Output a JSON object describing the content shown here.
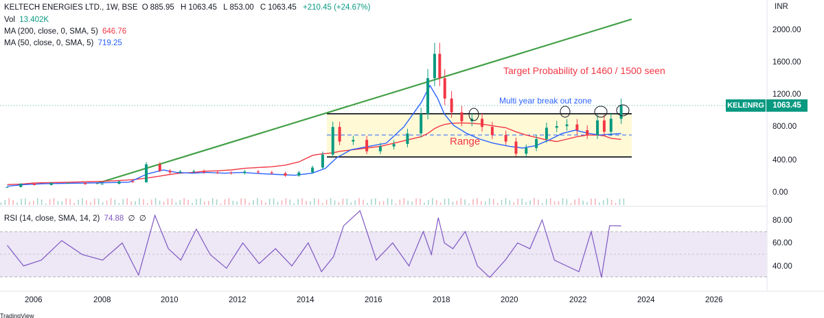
{
  "header": {
    "symbol_line": "KELTECH ENERGIES LTD., 1W, BSE",
    "open_label": "O",
    "open": "885.95",
    "high_label": "H",
    "high": "1063.45",
    "low_label": "L",
    "low": "853.00",
    "close_label": "C",
    "close": "1063.45",
    "change": "+210.45 (+24.67%)"
  },
  "indicators": {
    "vol_label": "Vol",
    "vol_value": "13.402K",
    "ma200_label": "MA (200, close, 0, SMA, 5)",
    "ma200_value": "646.76",
    "ma50_label": "MA (50, close, 0, SMA, 5)",
    "ma50_value": "719.25",
    "rsi_label": "RSI (14, close, SMA, 14, 2)",
    "rsi_value": "74.88",
    "rsi_extra1": "∅",
    "rsi_extra2": "∅"
  },
  "price_axis": {
    "currency": "INR",
    "labels": [
      "2000.00",
      "1600.00",
      "1200.00",
      "800.00",
      "400.00",
      "0.00"
    ]
  },
  "rsi_axis": {
    "labels": [
      "80.00",
      "60.00",
      "40.00"
    ]
  },
  "time_axis": {
    "labels": [
      "2006",
      "2008",
      "2010",
      "2012",
      "2014",
      "2016",
      "2018",
      "2020",
      "2022",
      "2024",
      "2026"
    ]
  },
  "last_price": {
    "symbol": "KELENRG",
    "value": "1063.45"
  },
  "annotations": {
    "target": "Target Probability of 1460 / 1500 seen",
    "breakout": "Multi year break out zone",
    "range": "Range"
  },
  "colors": {
    "up": "#089981",
    "down": "#f23645",
    "trendline": "#43a047",
    "ma200": "#f23645",
    "ma50": "#2962ff",
    "rsi": "#7e57c2",
    "range_fill": "#fff9d6",
    "rsi_band": "#ede7f6"
  },
  "footer": {
    "text": "TradingView"
  },
  "chart_data": {
    "type": "candlestick",
    "timeframe": "1W",
    "x": [
      "2005.2",
      "2005.6",
      "2006.0",
      "2006.5",
      "2007.0",
      "2007.5",
      "2008.0",
      "2008.5",
      "2008.9",
      "2009.3",
      "2009.7",
      "2010.0",
      "2010.3",
      "2010.7",
      "2011.0",
      "2011.4",
      "2011.8",
      "2012.2",
      "2012.6",
      "2013.0",
      "2013.4",
      "2013.8",
      "2014.2",
      "2014.5",
      "2014.8",
      "2015.0",
      "2015.4",
      "2015.8",
      "2016.2",
      "2016.6",
      "2017.0",
      "2017.4",
      "2017.6",
      "2017.8",
      "2017.95",
      "2018.1",
      "2018.3",
      "2018.6",
      "2018.9",
      "2019.2",
      "2019.5",
      "2019.9",
      "2020.2",
      "2020.5",
      "2020.8",
      "2021.1",
      "2021.4",
      "2021.7",
      "2022.0",
      "2022.3",
      "2022.6",
      "2022.8",
      "2023.0",
      "2023.3"
    ],
    "close": [
      60,
      100,
      85,
      110,
      110,
      95,
      100,
      130,
      120,
      340,
      260,
      240,
      250,
      255,
      240,
      235,
      230,
      250,
      240,
      230,
      200,
      240,
      300,
      460,
      800,
      620,
      640,
      500,
      560,
      590,
      720,
      960,
      1400,
      1700,
      1400,
      1150,
      980,
      870,
      900,
      800,
      700,
      620,
      470,
      540,
      650,
      790,
      810,
      830,
      760,
      700,
      880,
      740,
      900,
      1063.45
    ],
    "ylim": [
      0,
      2200
    ],
    "ma200": [
      90,
      95,
      110,
      115,
      118,
      125,
      130,
      140,
      150,
      170,
      195,
      215,
      230,
      240,
      255,
      260,
      270,
      290,
      300,
      310,
      330,
      370,
      450,
      470,
      480,
      500,
      520,
      540,
      560,
      600,
      640,
      680,
      720,
      780,
      810,
      830,
      845,
      850,
      845,
      835,
      815,
      790,
      740,
      700,
      670,
      640,
      620,
      650,
      680,
      700,
      700,
      690,
      660,
      646.76
    ],
    "ma50": [
      70,
      90,
      100,
      105,
      110,
      115,
      120,
      220,
      270,
      240,
      230,
      240,
      230,
      240,
      225,
      215,
      205,
      230,
      290,
      420,
      520,
      560,
      600,
      800,
      1100,
      1310,
      1150,
      960,
      820,
      720,
      650,
      600,
      560,
      540,
      570,
      640,
      720,
      760,
      720,
      700,
      710,
      719.25
    ],
    "volume_units": "K",
    "vol_last": 13.402,
    "rsi": [
      58,
      40,
      45,
      62,
      50,
      45,
      60,
      32,
      84,
      55,
      45,
      72,
      50,
      38,
      60,
      42,
      55,
      40,
      60,
      35,
      48,
      75,
      88,
      45,
      60,
      40,
      70,
      50,
      82,
      60,
      55,
      70,
      40,
      30,
      45,
      60,
      55,
      80,
      45,
      40,
      35,
      70,
      30,
      75,
      74.88
    ],
    "rsi_ylim": [
      25,
      90
    ],
    "rsi_bands": [
      30,
      70
    ],
    "lines": {
      "trendline": {
        "x1": 2007.8,
        "y1": 110,
        "x2": 2023.5,
        "y2": 2110
      },
      "range_high": 960,
      "range_low": 440,
      "breakout_dash": 700,
      "last_price_dotted": 1063.45
    }
  }
}
